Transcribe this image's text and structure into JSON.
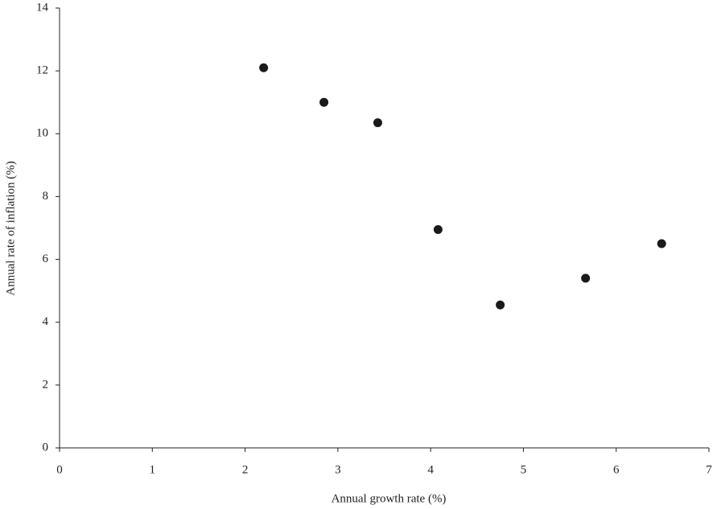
{
  "chart_data": {
    "type": "scatter",
    "x_label": "Annual growth rate (%)",
    "y_label": "Annual rate of inflation (%)",
    "x": [
      2.2,
      2.85,
      3.43,
      4.08,
      4.75,
      5.67,
      6.49
    ],
    "values": [
      12.1,
      11.0,
      10.35,
      6.95,
      4.55,
      5.4,
      6.5
    ],
    "color": "#1a1a1a",
    "xlim": [
      0,
      7
    ],
    "xticks": [
      0,
      1,
      2,
      3,
      4,
      5,
      6,
      7
    ],
    "ylim": [
      0,
      14
    ],
    "yticks": [
      0,
      2,
      4,
      6,
      8,
      10,
      12,
      14
    ],
    "grid": false
  }
}
